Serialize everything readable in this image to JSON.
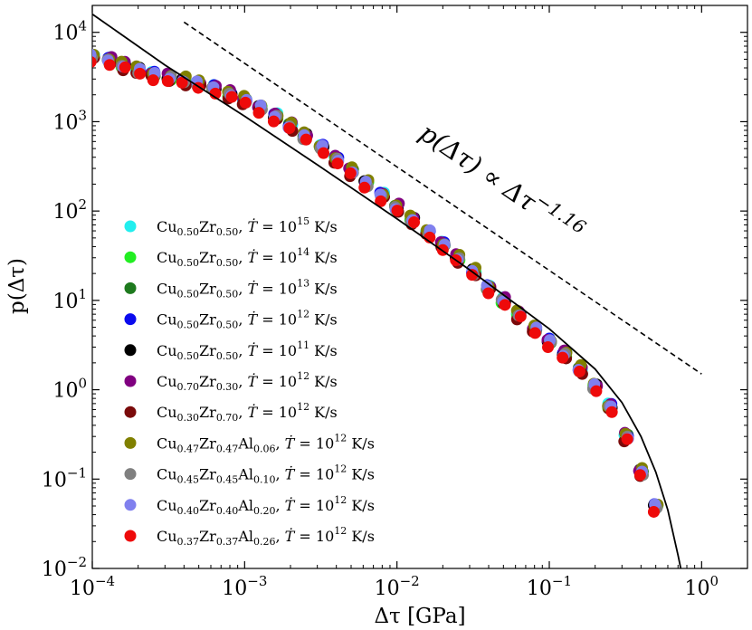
{
  "chart_data": {
    "type": "scatter",
    "xscale": "log",
    "yscale": "log",
    "xlim": [
      0.0001,
      2
    ],
    "ylim": [
      0.01,
      20000
    ],
    "xlabel": "Δτ [GPa]",
    "ylabel": "p(Δτ)",
    "x_ticks": [
      {
        "base": "10",
        "exp": "−4",
        "value": 0.0001
      },
      {
        "base": "10",
        "exp": "−3",
        "value": 0.001
      },
      {
        "base": "10",
        "exp": "−2",
        "value": 0.01
      },
      {
        "base": "10",
        "exp": "−1",
        "value": 0.1
      },
      {
        "base": "10",
        "exp": "0",
        "value": 1
      }
    ],
    "y_ticks": [
      {
        "base": "10",
        "exp": "−2",
        "value": 0.01
      },
      {
        "base": "10",
        "exp": "−1",
        "value": 0.1
      },
      {
        "base": "10",
        "exp": "0",
        "value": 1
      },
      {
        "base": "10",
        "exp": "1",
        "value": 10
      },
      {
        "base": "10",
        "exp": "2",
        "value": 100
      },
      {
        "base": "10",
        "exp": "3",
        "value": 1000
      },
      {
        "base": "10",
        "exp": "4",
        "value": 10000
      }
    ],
    "annotation": {
      "text": "p(Δτ) ∝ Δτ",
      "exponent": "−1.16"
    },
    "powerlaw_reference": {
      "exponent": -1.16,
      "x": [
        0.0004,
        1.0
      ],
      "y": [
        13000,
        1.5
      ]
    },
    "fit_curve": {
      "x": [
        0.0001,
        0.0003,
        0.001,
        0.003,
        0.01,
        0.03,
        0.1,
        0.2,
        0.3,
        0.4,
        0.5,
        0.6,
        0.7,
        0.75
      ],
      "y": [
        16000,
        4300,
        1150,
        330,
        82,
        22,
        4.8,
        1.7,
        0.72,
        0.3,
        0.12,
        0.045,
        0.014,
        0.008
      ]
    },
    "x": [
      0.0001,
      0.00013,
      0.00016,
      0.0002,
      0.00025,
      0.00032,
      0.0004,
      0.0005,
      0.00063,
      0.0008,
      0.001,
      0.00126,
      0.0016,
      0.002,
      0.0025,
      0.0032,
      0.004,
      0.005,
      0.0063,
      0.008,
      0.01,
      0.0126,
      0.016,
      0.02,
      0.025,
      0.032,
      0.04,
      0.05,
      0.063,
      0.08,
      0.1,
      0.126,
      0.16,
      0.2,
      0.25,
      0.32,
      0.4,
      0.5
    ],
    "series": [
      {
        "name": "Cu",
        "sub1": "0.50",
        "mid": "Zr",
        "sub2": "0.50",
        "sub3": "",
        "suffix": "",
        "rate": "15",
        "color": "#22eeee",
        "scale": 1.03
      },
      {
        "name": "Cu",
        "sub1": "0.50",
        "mid": "Zr",
        "sub2": "0.50",
        "sub3": "",
        "suffix": "",
        "rate": "14",
        "color": "#22ee22",
        "scale": 0.98
      },
      {
        "name": "Cu",
        "sub1": "0.50",
        "mid": "Zr",
        "sub2": "0.50",
        "sub3": "",
        "suffix": "",
        "rate": "13",
        "color": "#1e7a1e",
        "scale": 1.0
      },
      {
        "name": "Cu",
        "sub1": "0.50",
        "mid": "Zr",
        "sub2": "0.50",
        "sub3": "",
        "suffix": "",
        "rate": "12",
        "color": "#0a0aee",
        "scale": 1.02
      },
      {
        "name": "Cu",
        "sub1": "0.50",
        "mid": "Zr",
        "sub2": "0.50",
        "sub3": "",
        "suffix": "",
        "rate": "11",
        "color": "#000000",
        "scale": 1.01
      },
      {
        "name": "Cu",
        "sub1": "0.70",
        "mid": "Zr",
        "sub2": "0.30",
        "sub3": "",
        "suffix": "",
        "rate": "12",
        "color": "#800080",
        "scale": 1.05
      },
      {
        "name": "Cu",
        "sub1": "0.30",
        "mid": "Zr",
        "sub2": "0.70",
        "sub3": "",
        "suffix": "",
        "rate": "12",
        "color": "#7a0a0a",
        "scale": 0.92
      },
      {
        "name": "Cu",
        "sub1": "0.47",
        "mid": "Zr",
        "sub2": "0.47",
        "sub3": "0.06",
        "suffix": "Al",
        "rate": "12",
        "color": "#808000",
        "scale": 1.06
      },
      {
        "name": "Cu",
        "sub1": "0.45",
        "mid": "Zr",
        "sub2": "0.45",
        "sub3": "0.10",
        "suffix": "Al",
        "rate": "12",
        "color": "#808080",
        "scale": 0.97
      },
      {
        "name": "Cu",
        "sub1": "0.40",
        "mid": "Zr",
        "sub2": "0.40",
        "sub3": "0.20",
        "suffix": "Al",
        "rate": "12",
        "color": "#8080ee",
        "scale": 1.0
      },
      {
        "name": "Cu",
        "sub1": "0.37",
        "mid": "Zr",
        "sub2": "0.37",
        "sub3": "0.26",
        "suffix": "Al",
        "rate": "12",
        "color": "#ee0a0a",
        "scale": 0.9
      }
    ],
    "base_curve": [
      5400,
      4900,
      4300,
      3800,
      3400,
      3150,
      2900,
      2700,
      2400,
      2050,
      1750,
      1450,
      1150,
      900,
      690,
      520,
      380,
      280,
      205,
      150,
      110,
      80,
      58,
      42,
      30,
      21,
      14,
      10,
      7,
      4.8,
      3.5,
      2.5,
      1.7,
      1.1,
      0.65,
      0.3,
      0.12,
      0.05
    ],
    "legend": {
      "dot_label": "Ṫ",
      "units": "K/s",
      "placement": "center-left"
    }
  }
}
